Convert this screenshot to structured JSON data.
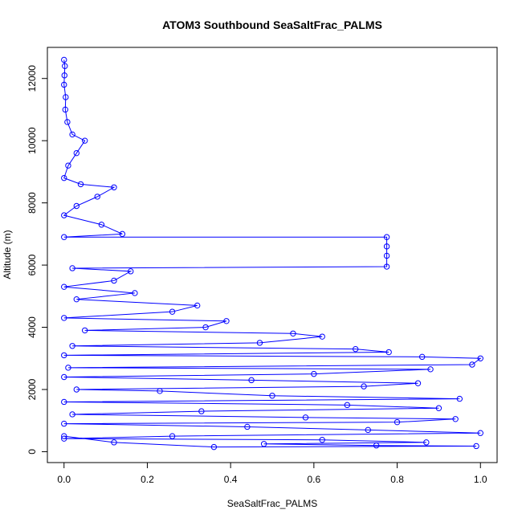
{
  "chart_data": {
    "type": "scatter",
    "title": "ATOM3 Southbound SeaSaltFrac_PALMS",
    "xlabel": "SeaSaltFrac_PALMS",
    "ylabel": "Altitude (m)",
    "xlim": [
      -0.04,
      1.04
    ],
    "ylim": [
      -350,
      13000
    ],
    "x_ticks": [
      0.0,
      0.2,
      0.4,
      0.6,
      0.8,
      1.0
    ],
    "x_tick_labels": [
      "0.0",
      "0.2",
      "0.4",
      "0.6",
      "0.8",
      "1.0"
    ],
    "y_ticks": [
      0,
      2000,
      4000,
      6000,
      8000,
      10000,
      12000
    ],
    "y_tick_labels": [
      "0",
      "2000",
      "4000",
      "6000",
      "8000",
      "10000",
      "12000"
    ],
    "grid": false,
    "legend": "none",
    "series_color": "#0000ff",
    "series": [
      {
        "marker": "open-circle",
        "connected": true,
        "points": [
          [
            0.0,
            12600
          ],
          [
            0.002,
            12400
          ],
          [
            0.001,
            12100
          ],
          [
            0.0,
            11800
          ],
          [
            0.004,
            11400
          ],
          [
            0.003,
            11000
          ],
          [
            0.008,
            10600
          ],
          [
            0.02,
            10200
          ],
          [
            0.05,
            10000
          ],
          [
            0.03,
            9600
          ],
          [
            0.01,
            9200
          ],
          [
            0.0,
            8800
          ],
          [
            0.04,
            8600
          ],
          [
            0.12,
            8500
          ],
          [
            0.08,
            8200
          ],
          [
            0.03,
            7900
          ],
          [
            0.0,
            7600
          ],
          [
            0.09,
            7300
          ],
          [
            0.14,
            7000
          ],
          [
            0.0,
            6900
          ],
          [
            0.775,
            6900
          ],
          [
            0.775,
            6600
          ],
          [
            0.775,
            6300
          ],
          [
            0.775,
            5950
          ],
          [
            0.02,
            5900
          ],
          [
            0.16,
            5800
          ],
          [
            0.12,
            5500
          ],
          [
            0.0,
            5300
          ],
          [
            0.17,
            5100
          ],
          [
            0.03,
            4900
          ],
          [
            0.32,
            4700
          ],
          [
            0.26,
            4500
          ],
          [
            0.0,
            4300
          ],
          [
            0.39,
            4200
          ],
          [
            0.34,
            4000
          ],
          [
            0.05,
            3900
          ],
          [
            0.55,
            3800
          ],
          [
            0.62,
            3700
          ],
          [
            0.47,
            3500
          ],
          [
            0.02,
            3400
          ],
          [
            0.7,
            3300
          ],
          [
            0.78,
            3200
          ],
          [
            0.0,
            3100
          ],
          [
            0.86,
            3050
          ],
          [
            1.0,
            3000
          ],
          [
            0.98,
            2800
          ],
          [
            0.01,
            2700
          ],
          [
            0.88,
            2650
          ],
          [
            0.6,
            2500
          ],
          [
            0.0,
            2400
          ],
          [
            0.45,
            2300
          ],
          [
            0.85,
            2200
          ],
          [
            0.72,
            2100
          ],
          [
            0.03,
            2000
          ],
          [
            0.23,
            1950
          ],
          [
            0.5,
            1800
          ],
          [
            0.95,
            1700
          ],
          [
            0.0,
            1600
          ],
          [
            0.68,
            1500
          ],
          [
            0.9,
            1400
          ],
          [
            0.33,
            1300
          ],
          [
            0.02,
            1200
          ],
          [
            0.58,
            1100
          ],
          [
            0.94,
            1050
          ],
          [
            0.8,
            950
          ],
          [
            0.0,
            900
          ],
          [
            0.44,
            800
          ],
          [
            0.73,
            700
          ],
          [
            1.0,
            600
          ],
          [
            0.26,
            500
          ],
          [
            0.0,
            420
          ],
          [
            0.62,
            380
          ],
          [
            0.87,
            300
          ],
          [
            0.48,
            250
          ],
          [
            0.75,
            200
          ],
          [
            0.99,
            180
          ],
          [
            0.36,
            150
          ],
          [
            0.12,
            300
          ],
          [
            0.0,
            500
          ]
        ]
      }
    ]
  }
}
